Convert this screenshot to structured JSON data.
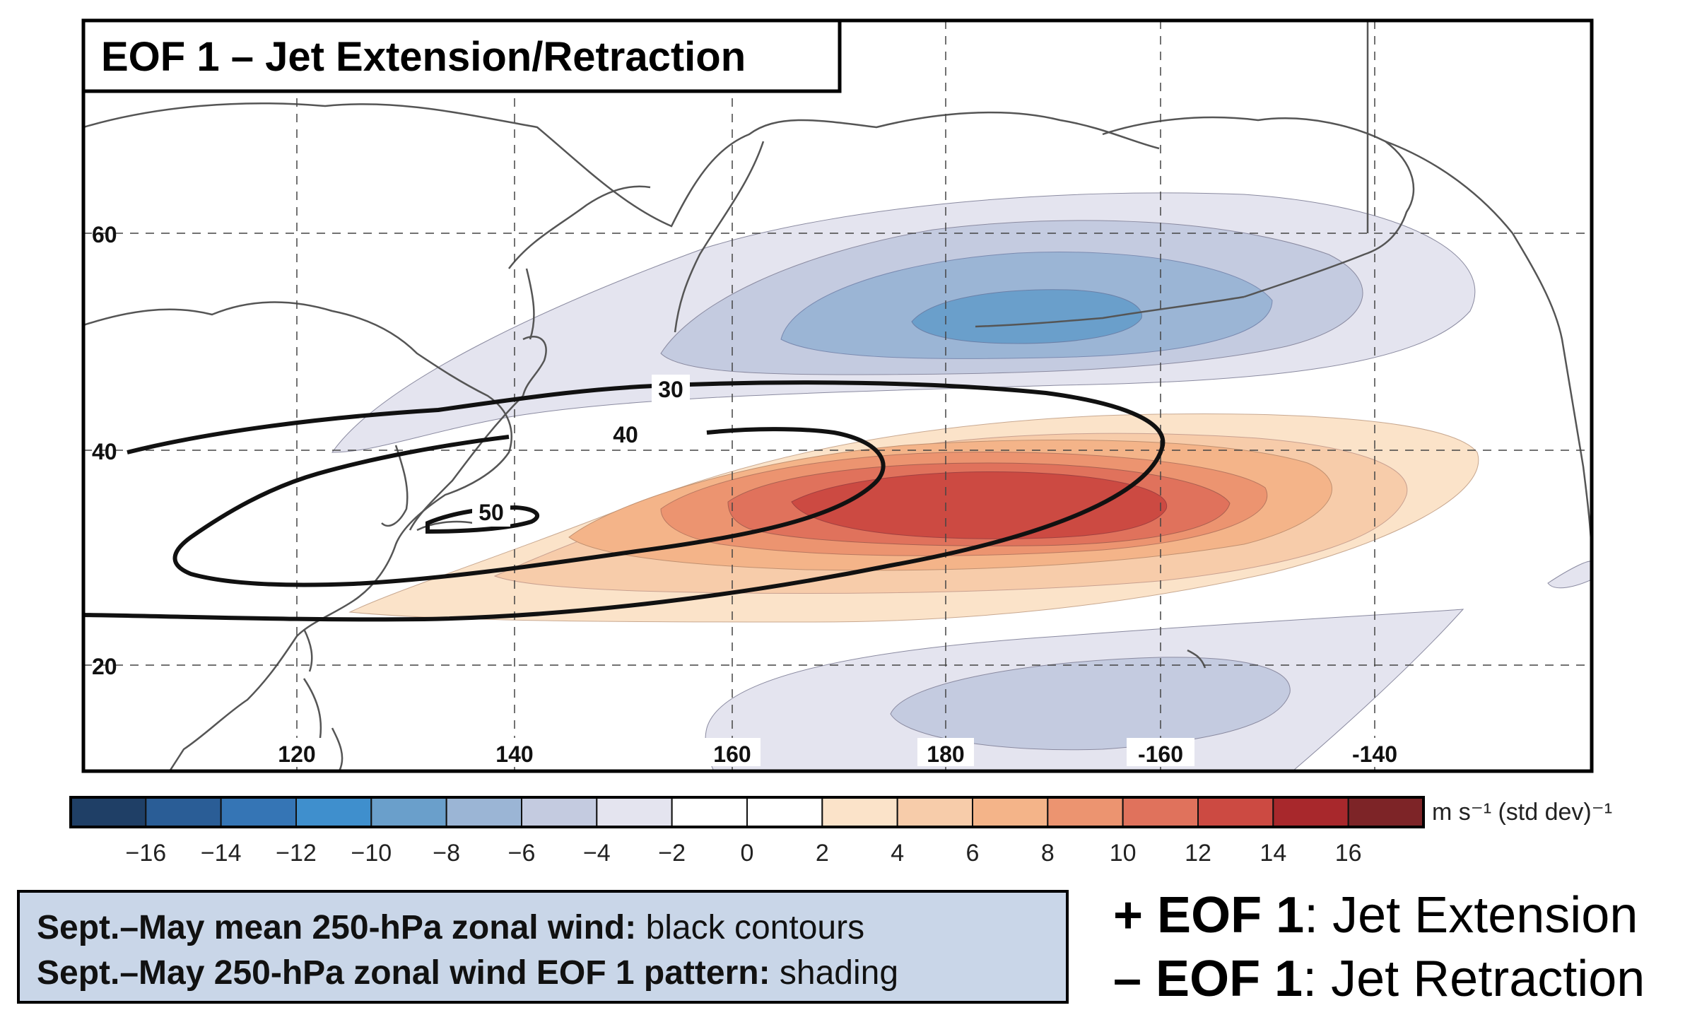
{
  "title": "EOF 1 – Jet Extension/Retraction",
  "map": {
    "longitude_labels": [
      "120",
      "140",
      "160",
      "180",
      "-160",
      "-140"
    ],
    "latitude_labels": [
      "60",
      "40",
      "20"
    ],
    "contour_labels": [
      "30",
      "40",
      "50"
    ]
  },
  "colorbar": {
    "tick_labels": [
      "−16",
      "−14",
      "−12",
      "−10",
      "−8",
      "−6",
      "−4",
      "−2",
      "0",
      "2",
      "4",
      "6",
      "8",
      "10",
      "12",
      "14",
      "16"
    ],
    "unit_label": "m s⁻¹ (std dev)⁻¹",
    "colors": [
      "#1f3f66",
      "#2a5d96",
      "#3575b5",
      "#3f8fcd",
      "#6a9fcb",
      "#9bb5d5",
      "#c4cbe0",
      "#e4e4ef",
      "#ffffff",
      "#ffffff",
      "#fbe3c9",
      "#f7ccaa",
      "#f4b489",
      "#ec9470",
      "#e0725c",
      "#cc4a42",
      "#a8282c",
      "#7d2427"
    ]
  },
  "legend": {
    "line1_bold": "Sept.–May mean 250-hPa zonal wind:",
    "line1_rest": " black contours",
    "line2_bold": "Sept.–May 250-hPa zonal wind EOF 1 pattern:",
    "line2_rest": " shading"
  },
  "eof_key": {
    "plus_bold": "+ EOF 1",
    "plus_rest": ": Jet Extension",
    "minus_bold": "– EOF 1",
    "minus_rest": ": Jet Retraction"
  }
}
